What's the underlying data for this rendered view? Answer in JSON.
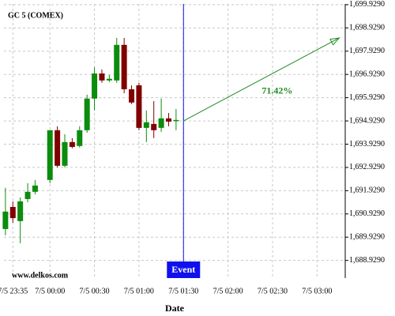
{
  "chart_data": {
    "type": "candlestick",
    "title": "GC 5 (COMEX)",
    "xlabel": "Date",
    "watermark": "www.delkos.com",
    "x": [
      -30,
      -25,
      -20,
      -15,
      -10,
      0,
      5,
      10,
      15,
      20,
      25,
      30,
      35,
      40,
      45,
      50,
      55,
      60,
      65,
      70,
      75,
      80,
      85
    ],
    "open": [
      1690.28,
      1691.23,
      1690.62,
      1691.57,
      1691.88,
      1692.39,
      1694.53,
      1693.0,
      1694.02,
      1693.85,
      1694.53,
      1695.89,
      1696.97,
      1696.67,
      1696.67,
      1698.2,
      1696.29,
      1696.46,
      1694.63,
      1694.8,
      1694.63,
      1695.04,
      1694.93
    ],
    "close": [
      1691.03,
      1690.75,
      1691.47,
      1691.88,
      1692.15,
      1694.53,
      1693.0,
      1694.02,
      1693.81,
      1694.53,
      1695.89,
      1696.97,
      1696.67,
      1696.74,
      1698.2,
      1696.29,
      1695.72,
      1694.63,
      1694.87,
      1694.53,
      1695.04,
      1694.9,
      1694.97
    ],
    "high": [
      1692.05,
      1691.47,
      1691.64,
      1692.25,
      1692.39,
      1694.53,
      1694.7,
      1694.36,
      1694.19,
      1694.7,
      1696.06,
      1697.24,
      1697.14,
      1696.91,
      1698.5,
      1698.5,
      1696.46,
      1696.57,
      1695.38,
      1695.78,
      1695.89,
      1695.27,
      1695.44
    ],
    "low": [
      1690.01,
      1690.55,
      1689.67,
      1691.43,
      1691.77,
      1692.25,
      1692.93,
      1692.93,
      1693.75,
      1693.78,
      1694.42,
      1695.38,
      1696.57,
      1696.6,
      1696.57,
      1696.12,
      1695.65,
      1694.53,
      1694.02,
      1694.19,
      1694.46,
      1694.7,
      1694.53
    ],
    "up_color": "#0c8c0c",
    "down_color": "#800000",
    "xlim": [
      -31,
      199
    ],
    "xticks": [
      {
        "value": -25,
        "label": "7/5 23:35"
      },
      {
        "value": 0,
        "label": "7/5 00:00"
      },
      {
        "value": 30,
        "label": "7/5 00:30"
      },
      {
        "value": 60,
        "label": "7/5 01:00"
      },
      {
        "value": 90,
        "label": "7/5 01:30"
      },
      {
        "value": 120,
        "label": "7/5 02:00"
      },
      {
        "value": 150,
        "label": "7/5 02:30"
      },
      {
        "value": 180,
        "label": "7/5 03:00"
      }
    ],
    "ylim": [
      1688.17,
      1699.96
    ],
    "yticks": [
      {
        "value": 1699.929,
        "label": "1,699.9290"
      },
      {
        "value": 1698.929,
        "label": "1,698.9290"
      },
      {
        "value": 1697.929,
        "label": "1,697.9290"
      },
      {
        "value": 1696.929,
        "label": "1,696.9290"
      },
      {
        "value": 1695.929,
        "label": "1,695.9290"
      },
      {
        "value": 1694.929,
        "label": "1,694.9290"
      },
      {
        "value": 1693.929,
        "label": "1,693.9290"
      },
      {
        "value": 1692.929,
        "label": "1,692.9290"
      },
      {
        "value": 1691.929,
        "label": "1,691.9290"
      },
      {
        "value": 1690.929,
        "label": "1,690.9290"
      },
      {
        "value": 1689.929,
        "label": "1,689.9290"
      },
      {
        "value": 1688.929,
        "label": "1,688.9290"
      }
    ],
    "grid": true,
    "event": {
      "x": 90,
      "label": "Event",
      "color": "#1010ee"
    },
    "arrow": {
      "x": [
        90,
        195
      ],
      "y": [
        1694.93,
        1698.5
      ],
      "label": "71.42%",
      "color": "#1f8a1f"
    }
  }
}
